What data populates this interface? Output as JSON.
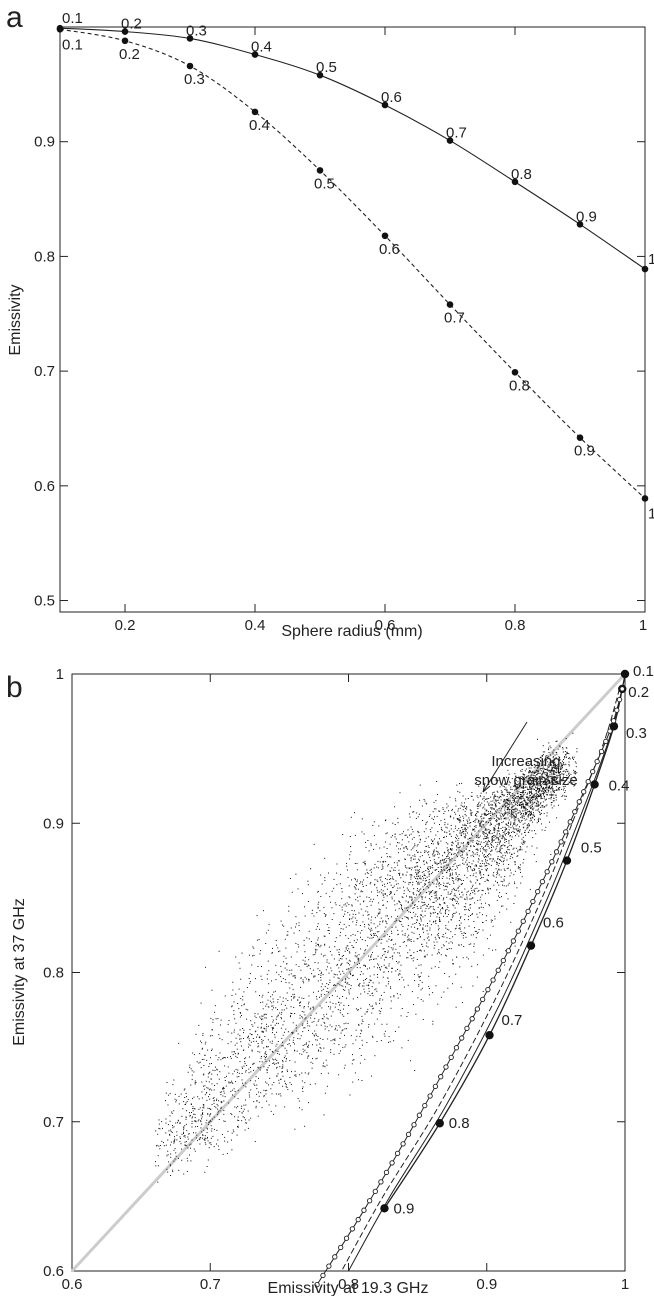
{
  "chart_data": [
    {
      "panel": "a",
      "type": "line",
      "xlabel": "Sphere radius (mm)",
      "ylabel": "Emissivity",
      "xlim": [
        0.1,
        1.0
      ],
      "ylim": [
        0.49,
        1.0
      ],
      "x_ticks": [
        0.2,
        0.4,
        0.6,
        0.8,
        1.0
      ],
      "x_tick_labels": [
        "0.2",
        "0.4",
        "0.6",
        "0.8",
        "1"
      ],
      "y_ticks": [
        0.5,
        0.6,
        0.7,
        0.8,
        0.9
      ],
      "y_tick_labels": [
        "0.5",
        "0.6",
        "0.7",
        "0.8",
        "0.9"
      ],
      "grid": false,
      "series": [
        {
          "style": "solid",
          "x": [
            0.1,
            0.2,
            0.3,
            0.4,
            0.5,
            0.6,
            0.7,
            0.8,
            0.9,
            1.0
          ],
          "y": [
            0.999,
            0.996,
            0.99,
            0.976,
            0.958,
            0.932,
            0.901,
            0.865,
            0.828,
            0.789
          ],
          "point_labels": [
            "0.1",
            "0.2",
            "0.3",
            "0.4",
            "0.5",
            "0.6",
            "0.7",
            "0.8",
            "0.9",
            "1"
          ]
        },
        {
          "style": "dashed",
          "x": [
            0.1,
            0.2,
            0.3,
            0.4,
            0.5,
            0.6,
            0.7,
            0.8,
            0.9,
            1.0
          ],
          "y": [
            0.998,
            0.988,
            0.966,
            0.926,
            0.875,
            0.818,
            0.758,
            0.699,
            0.642,
            0.589
          ],
          "point_labels": [
            "0.1",
            "0.2",
            "0.3",
            "0.4",
            "0.5",
            "0.6",
            "0.7",
            "0.8",
            "0.9",
            "1"
          ]
        }
      ]
    },
    {
      "panel": "b",
      "type": "scatter",
      "xlabel": "Emissivity at 19.3 GHz",
      "ylabel": "Emissivity at 37 GHz",
      "xlim": [
        0.6,
        1.0
      ],
      "ylim": [
        0.6,
        1.0
      ],
      "x_ticks": [
        0.6,
        0.7,
        0.8,
        0.9,
        1.0
      ],
      "x_tick_labels": [
        "0.6",
        "0.7",
        "0.8",
        "0.9",
        "1"
      ],
      "y_ticks": [
        0.6,
        0.7,
        0.8,
        0.9,
        1.0
      ],
      "y_tick_labels": [
        "0.6",
        "0.7",
        "0.8",
        "0.9",
        "1"
      ],
      "grid": false,
      "one_to_one_line": {
        "x": [
          0.6,
          1.0
        ],
        "y": [
          0.6,
          1.0
        ],
        "color": "#cccccc"
      },
      "scatter_cloud": {
        "description_points": "dense point cloud along ridge",
        "ridge_x": [
          0.665,
          0.72,
          0.78,
          0.84,
          0.88,
          0.92,
          0.955
        ],
        "ridge_y": [
          0.675,
          0.735,
          0.785,
          0.84,
          0.875,
          0.91,
          0.94
        ],
        "count": 5200
      },
      "series": [
        {
          "style": "solid-large-dots",
          "x": [
            1.0,
            0.998,
            0.992,
            0.978,
            0.958,
            0.932,
            0.902,
            0.866,
            0.826
          ],
          "y": [
            1.0,
            0.99,
            0.965,
            0.926,
            0.875,
            0.818,
            0.758,
            0.699,
            0.642
          ],
          "point_labels": [
            "0.1",
            "0.2",
            "0.3",
            "0.4",
            "0.5",
            "0.6",
            "0.7",
            "0.8",
            "0.9"
          ]
        },
        {
          "style": "solid-small-circles",
          "x": [
            0.998,
            0.99,
            0.972,
            0.947,
            0.917,
            0.883,
            0.848,
            0.812,
            0.776
          ],
          "y": [
            0.99,
            0.964,
            0.925,
            0.874,
            0.817,
            0.758,
            0.699,
            0.642,
            0.589
          ]
        },
        {
          "style": "dashed",
          "x": [
            0.996,
            0.985,
            0.966,
            0.94,
            0.905,
            0.865,
            0.825,
            0.795
          ],
          "y": [
            0.99,
            0.955,
            0.91,
            0.85,
            0.78,
            0.71,
            0.65,
            0.6
          ]
        },
        {
          "style": "solid-thin",
          "x": [
            0.998,
            0.988,
            0.97,
            0.944,
            0.91,
            0.87,
            0.83,
            0.8
          ],
          "y": [
            0.99,
            0.955,
            0.91,
            0.85,
            0.78,
            0.71,
            0.65,
            0.6
          ]
        }
      ],
      "annotation": {
        "text": [
          "Increasing",
          "snow grain size"
        ],
        "arrow": true
      }
    }
  ],
  "panel_labels": {
    "a": "a",
    "b": "b"
  }
}
